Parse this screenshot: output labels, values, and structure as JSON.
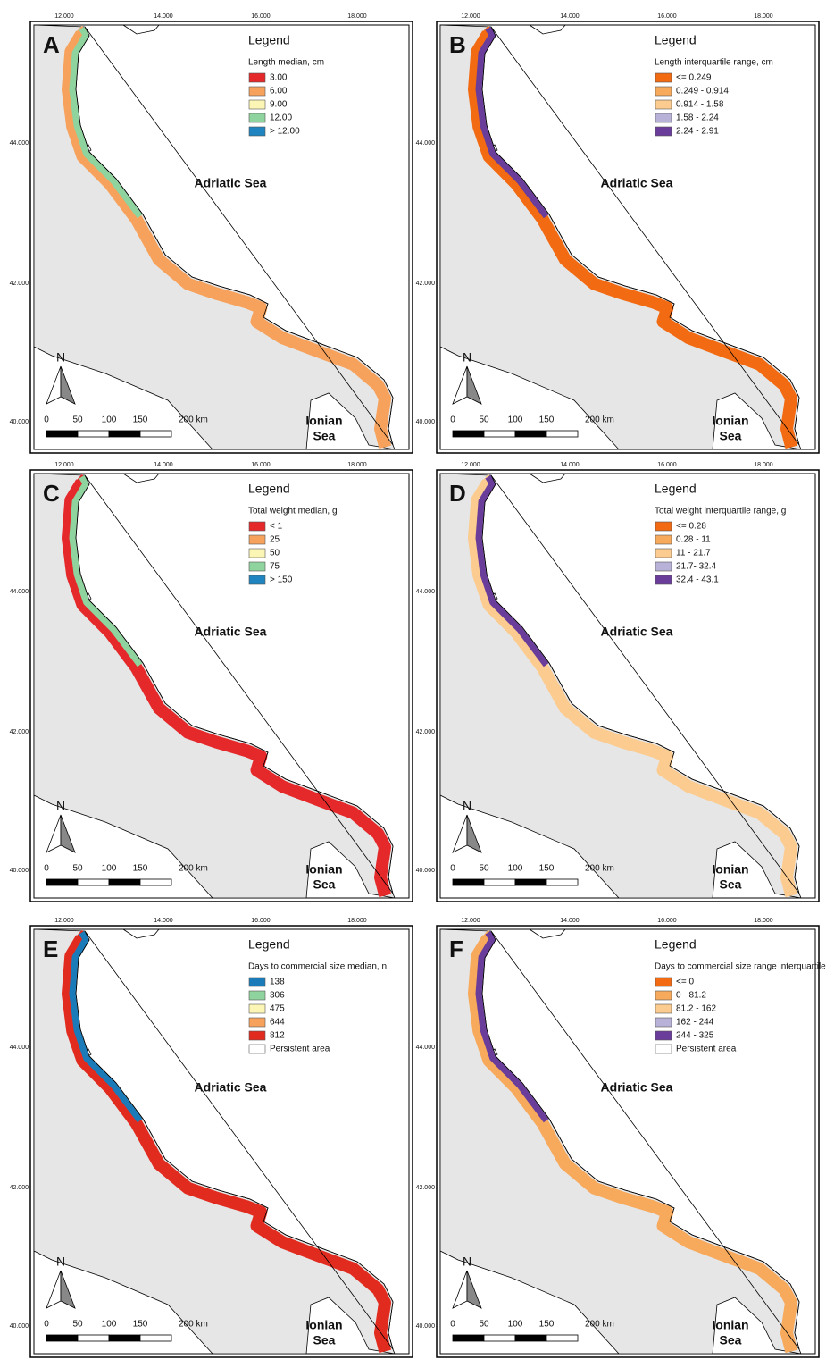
{
  "map": {
    "legend_heading": "Legend",
    "sea_adriatic": "Adriatic Sea",
    "sea_ionian": [
      "Ionian",
      "Sea"
    ],
    "north": "N",
    "scale_labels": [
      "0",
      "50",
      "100",
      "150",
      "200 km"
    ],
    "lon_ticks": [
      "12.000",
      "14.000",
      "16.000",
      "18.000"
    ],
    "lat_ticks": [
      "44.000",
      "42.000",
      "40.000"
    ]
  },
  "panels": [
    {
      "letter": "A",
      "legend_subtitle": "Length median, cm",
      "legend_items": [
        {
          "label": "3.00",
          "color": "#e5282a"
        },
        {
          "label": "6.00",
          "color": "#f6a25c"
        },
        {
          "label": "9.00",
          "color": "#fcf6b6"
        },
        {
          "label": "12.00",
          "color": "#8fd39e"
        },
        {
          "label": "> 12.00",
          "color": "#1f84bf"
        }
      ]
    },
    {
      "letter": "B",
      "legend_subtitle": "Length interquartile range, cm",
      "legend_items": [
        {
          "label": "<= 0.249",
          "color": "#f26a12"
        },
        {
          "label": "0.249 - 0.914",
          "color": "#f7a95c"
        },
        {
          "label": "0.914 - 1.58",
          "color": "#fccb8f"
        },
        {
          "label": "1.58 - 2.24",
          "color": "#b8b2d8"
        },
        {
          "label": "2.24 - 2.91",
          "color": "#6a3d9a"
        }
      ]
    },
    {
      "letter": "C",
      "legend_subtitle": "Total weight median, g",
      "legend_items": [
        {
          "label": "< 1",
          "color": "#e5282a"
        },
        {
          "label": "25",
          "color": "#f6a25c"
        },
        {
          "label": "50",
          "color": "#fcf6b6"
        },
        {
          "label": "75",
          "color": "#8fd39e"
        },
        {
          "label": "> 150",
          "color": "#1f84bf"
        }
      ]
    },
    {
      "letter": "D",
      "legend_subtitle": "Total weight interquartile range, g",
      "legend_items": [
        {
          "label": "<= 0.28",
          "color": "#f26a12"
        },
        {
          "label": "0.28 - 11",
          "color": "#f7a95c"
        },
        {
          "label": "11 - 21.7",
          "color": "#fccb8f"
        },
        {
          "label": "21.7- 32.4",
          "color": "#b8b2d8"
        },
        {
          "label": "32.4 - 43.1",
          "color": "#6a3d9a"
        }
      ]
    },
    {
      "letter": "E",
      "legend_subtitle": "Days to commercial size median, n",
      "legend_items": [
        {
          "label": "138",
          "color": "#1a7bb8"
        },
        {
          "label": "306",
          "color": "#8fd39e"
        },
        {
          "label": "475",
          "color": "#fcf6b6"
        },
        {
          "label": "644",
          "color": "#f6a25c"
        },
        {
          "label": "812",
          "color": "#e22b1f"
        },
        {
          "label": "Persistent area",
          "color": "#ffffff"
        }
      ]
    },
    {
      "letter": "F",
      "legend_subtitle": "Days to commercial size range interquartile, n",
      "legend_items": [
        {
          "label": "<= 0",
          "color": "#f26a12"
        },
        {
          "label": "0 - 81.2",
          "color": "#f7a95c"
        },
        {
          "label": "81.2 - 162",
          "color": "#fccb8f"
        },
        {
          "label": "162 - 244",
          "color": "#b8b2d8"
        },
        {
          "label": "244 - 325",
          "color": "#6a3d9a"
        },
        {
          "label": "Persistent area",
          "color": "#ffffff"
        }
      ]
    }
  ]
}
